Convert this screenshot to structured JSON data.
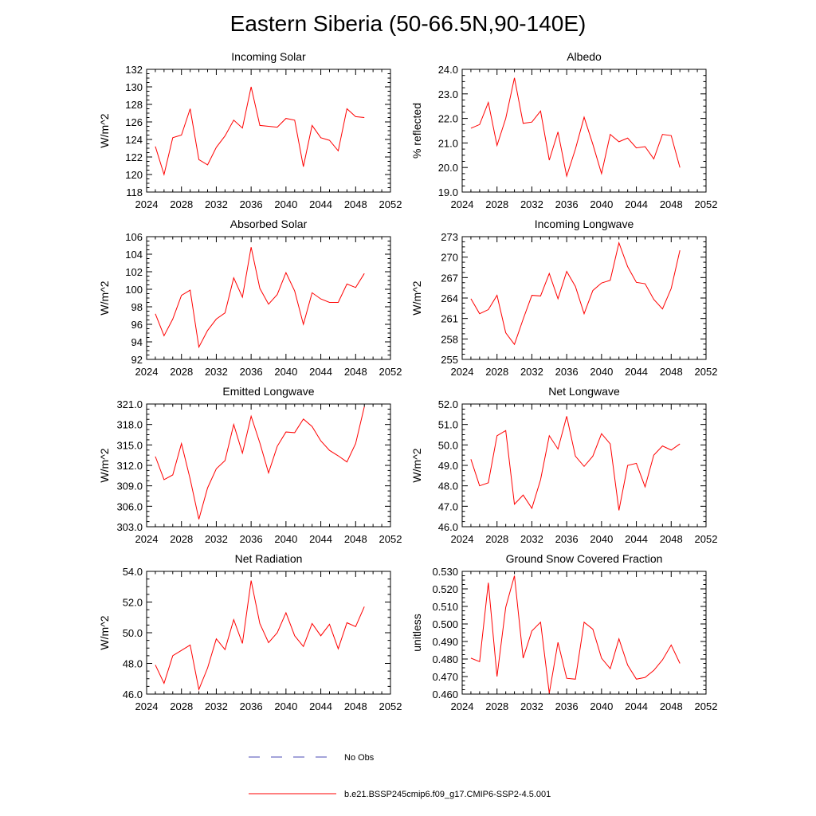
{
  "title": "Eastern Siberia (50-66.5N,90-140E)",
  "colors": {
    "model_line": "#ff0000",
    "obs_line": "#4a4ab4",
    "axis": "#000000"
  },
  "legend": {
    "obs_label": "No Obs",
    "model_label": "b.e21.BSSP245cmip6.f09_g17.CMIP6-SSP2-4.5.001"
  },
  "chart_data": [
    {
      "type": "line",
      "title": "Incoming Solar",
      "ylabel": "W/m^2",
      "xlim": [
        2024,
        2052
      ],
      "ylim": [
        118,
        132
      ],
      "xticks": [
        2024,
        2028,
        2032,
        2036,
        2040,
        2044,
        2048,
        2052
      ],
      "xtick_labels": [
        "2024",
        "2028",
        "2032",
        "2036",
        "2040",
        "2044",
        "2048",
        "2052"
      ],
      "yticks": [
        118,
        120,
        122,
        124,
        126,
        128,
        130,
        132
      ],
      "ytick_labels": [
        "118",
        "120",
        "122",
        "124",
        "126",
        "128",
        "130",
        "132"
      ],
      "x": [
        2025,
        2026,
        2027,
        2028,
        2029,
        2030,
        2031,
        2032,
        2033,
        2034,
        2035,
        2036,
        2037,
        2038,
        2039,
        2040,
        2041,
        2042,
        2043,
        2044,
        2045,
        2046,
        2047,
        2048,
        2049
      ],
      "values": [
        123.2,
        120.0,
        124.2,
        124.5,
        127.5,
        121.7,
        121.1,
        123.1,
        124.4,
        126.2,
        125.3,
        130.0,
        125.6,
        125.5,
        125.4,
        126.4,
        126.2,
        120.9,
        125.6,
        124.2,
        123.9,
        122.7,
        127.5,
        126.6,
        126.5
      ]
    },
    {
      "type": "line",
      "title": "Albedo",
      "ylabel": "% reflected",
      "xlim": [
        2024,
        2052
      ],
      "ylim": [
        19.0,
        24.0
      ],
      "xticks": [
        2024,
        2028,
        2032,
        2036,
        2040,
        2044,
        2048,
        2052
      ],
      "xtick_labels": [
        "2024",
        "2028",
        "2032",
        "2036",
        "2040",
        "2044",
        "2048",
        "2052"
      ],
      "yticks": [
        19.0,
        20.0,
        21.0,
        22.0,
        23.0,
        24.0
      ],
      "ytick_labels": [
        "19.0",
        "20.0",
        "21.0",
        "22.0",
        "23.0",
        "24.0"
      ],
      "x": [
        2025,
        2026,
        2027,
        2028,
        2029,
        2030,
        2031,
        2032,
        2033,
        2034,
        2035,
        2036,
        2037,
        2038,
        2039,
        2040,
        2041,
        2042,
        2043,
        2044,
        2045,
        2046,
        2047,
        2048,
        2049
      ],
      "values": [
        21.6,
        21.75,
        22.65,
        20.9,
        22.0,
        23.65,
        21.8,
        21.85,
        22.3,
        20.3,
        21.45,
        19.65,
        20.75,
        22.05,
        20.95,
        19.75,
        21.35,
        21.05,
        21.2,
        20.8,
        20.85,
        20.35,
        21.35,
        21.3,
        20.0
      ]
    },
    {
      "type": "line",
      "title": "Absorbed Solar",
      "ylabel": "W/m^2",
      "xlim": [
        2024,
        2052
      ],
      "ylim": [
        92,
        106
      ],
      "xticks": [
        2024,
        2028,
        2032,
        2036,
        2040,
        2044,
        2048,
        2052
      ],
      "xtick_labels": [
        "2024",
        "2028",
        "2032",
        "2036",
        "2040",
        "2044",
        "2048",
        "2052"
      ],
      "yticks": [
        92,
        94,
        96,
        98,
        100,
        102,
        104,
        106
      ],
      "ytick_labels": [
        "92",
        "94",
        "96",
        "98",
        "100",
        "102",
        "104",
        "106"
      ],
      "x": [
        2025,
        2026,
        2027,
        2028,
        2029,
        2030,
        2031,
        2032,
        2033,
        2034,
        2035,
        2036,
        2037,
        2038,
        2039,
        2040,
        2041,
        2042,
        2043,
        2044,
        2045,
        2046,
        2047,
        2048,
        2049
      ],
      "values": [
        97.2,
        94.7,
        96.6,
        99.3,
        99.9,
        93.4,
        95.3,
        96.6,
        97.3,
        101.3,
        99.1,
        104.8,
        100.1,
        98.3,
        99.4,
        101.9,
        99.8,
        96.0,
        99.6,
        98.9,
        98.5,
        98.5,
        100.6,
        100.2,
        101.8
      ]
    },
    {
      "type": "line",
      "title": "Incoming Longwave",
      "ylabel": "W/m^2",
      "xlim": [
        2024,
        2052
      ],
      "ylim": [
        255,
        273
      ],
      "xticks": [
        2024,
        2028,
        2032,
        2036,
        2040,
        2044,
        2048,
        2052
      ],
      "xtick_labels": [
        "2024",
        "2028",
        "2032",
        "2036",
        "2040",
        "2044",
        "2048",
        "2052"
      ],
      "yticks": [
        255,
        258,
        261,
        264,
        267,
        270,
        273
      ],
      "ytick_labels": [
        "255",
        "258",
        "261",
        "264",
        "267",
        "270",
        "273"
      ],
      "x": [
        2025,
        2026,
        2027,
        2028,
        2029,
        2030,
        2031,
        2032,
        2033,
        2034,
        2035,
        2036,
        2037,
        2038,
        2039,
        2040,
        2041,
        2042,
        2043,
        2044,
        2045,
        2046,
        2047,
        2048,
        2049
      ],
      "values": [
        263.9,
        261.7,
        262.3,
        264.4,
        258.9,
        257.2,
        260.9,
        264.4,
        264.3,
        267.6,
        263.9,
        267.9,
        265.7,
        261.7,
        265.1,
        266.2,
        266.6,
        272.1,
        268.6,
        266.3,
        266.1,
        263.8,
        262.4,
        265.4,
        271.0
      ]
    },
    {
      "type": "line",
      "title": "Emitted Longwave",
      "ylabel": "W/m^2",
      "xlim": [
        2024,
        2052
      ],
      "ylim": [
        303.0,
        321.0
      ],
      "xticks": [
        2024,
        2028,
        2032,
        2036,
        2040,
        2044,
        2048,
        2052
      ],
      "xtick_labels": [
        "2024",
        "2028",
        "2032",
        "2036",
        "2040",
        "2044",
        "2048",
        "2052"
      ],
      "yticks": [
        303.0,
        306.0,
        309.0,
        312.0,
        315.0,
        318.0,
        321.0
      ],
      "ytick_labels": [
        "303.0",
        "306.0",
        "309.0",
        "312.0",
        "315.0",
        "318.0",
        "321.0"
      ],
      "x": [
        2025,
        2026,
        2027,
        2028,
        2029,
        2030,
        2031,
        2032,
        2033,
        2034,
        2035,
        2036,
        2037,
        2038,
        2039,
        2040,
        2041,
        2042,
        2043,
        2044,
        2045,
        2046,
        2047,
        2048,
        2049
      ],
      "values": [
        313.3,
        309.9,
        310.6,
        315.2,
        310.0,
        304.1,
        308.7,
        311.5,
        312.7,
        318.0,
        313.8,
        319.2,
        315.3,
        310.9,
        314.8,
        316.9,
        316.8,
        318.8,
        317.7,
        315.6,
        314.2,
        313.4,
        312.5,
        315.2,
        320.6
      ]
    },
    {
      "type": "line",
      "title": "Net Longwave",
      "ylabel": "W/m^2",
      "xlim": [
        2024,
        2052
      ],
      "ylim": [
        46.0,
        52.0
      ],
      "xticks": [
        2024,
        2028,
        2032,
        2036,
        2040,
        2044,
        2048,
        2052
      ],
      "xtick_labels": [
        "2024",
        "2028",
        "2032",
        "2036",
        "2040",
        "2044",
        "2048",
        "2052"
      ],
      "yticks": [
        46.0,
        47.0,
        48.0,
        49.0,
        50.0,
        51.0,
        52.0
      ],
      "ytick_labels": [
        "46.0",
        "47.0",
        "48.0",
        "49.0",
        "50.0",
        "51.0",
        "52.0"
      ],
      "x": [
        2025,
        2026,
        2027,
        2028,
        2029,
        2030,
        2031,
        2032,
        2033,
        2034,
        2035,
        2036,
        2037,
        2038,
        2039,
        2040,
        2041,
        2042,
        2043,
        2044,
        2045,
        2046,
        2047,
        2048,
        2049
      ],
      "values": [
        49.3,
        48.0,
        48.15,
        50.45,
        50.7,
        47.1,
        47.55,
        46.9,
        48.3,
        50.45,
        49.8,
        51.4,
        49.45,
        48.95,
        49.45,
        50.55,
        50.05,
        46.8,
        49.0,
        49.1,
        47.95,
        49.5,
        49.95,
        49.75,
        50.05
      ]
    },
    {
      "type": "line",
      "title": "Net Radiation",
      "ylabel": "W/m^2",
      "xlim": [
        2024,
        2052
      ],
      "ylim": [
        46.0,
        54.0
      ],
      "xticks": [
        2024,
        2028,
        2032,
        2036,
        2040,
        2044,
        2048,
        2052
      ],
      "xtick_labels": [
        "2024",
        "2028",
        "2032",
        "2036",
        "2040",
        "2044",
        "2048",
        "2052"
      ],
      "yticks": [
        46.0,
        48.0,
        50.0,
        52.0,
        54.0
      ],
      "ytick_labels": [
        "46.0",
        "48.0",
        "50.0",
        "52.0",
        "54.0"
      ],
      "x": [
        2025,
        2026,
        2027,
        2028,
        2029,
        2030,
        2031,
        2032,
        2033,
        2034,
        2035,
        2036,
        2037,
        2038,
        2039,
        2040,
        2041,
        2042,
        2043,
        2044,
        2045,
        2046,
        2047,
        2048,
        2049
      ],
      "values": [
        47.9,
        46.7,
        48.5,
        48.85,
        49.2,
        46.3,
        47.7,
        49.6,
        48.9,
        50.85,
        49.3,
        53.4,
        50.6,
        49.35,
        50.0,
        51.3,
        49.8,
        49.1,
        50.6,
        49.8,
        50.55,
        48.95,
        50.65,
        50.4,
        51.7
      ]
    },
    {
      "type": "line",
      "title": "Ground Snow Covered Fraction",
      "ylabel": "unitless",
      "xlim": [
        2024,
        2052
      ],
      "ylim": [
        0.46,
        0.53
      ],
      "xticks": [
        2024,
        2028,
        2032,
        2036,
        2040,
        2044,
        2048,
        2052
      ],
      "xtick_labels": [
        "2024",
        "2028",
        "2032",
        "2036",
        "2040",
        "2044",
        "2048",
        "2052"
      ],
      "yticks": [
        0.46,
        0.47,
        0.48,
        0.49,
        0.5,
        0.51,
        0.52,
        0.53
      ],
      "ytick_labels": [
        "0.460",
        "0.470",
        "0.480",
        "0.490",
        "0.500",
        "0.510",
        "0.520",
        "0.530"
      ],
      "x": [
        2025,
        2026,
        2027,
        2028,
        2029,
        2030,
        2031,
        2032,
        2033,
        2034,
        2035,
        2036,
        2037,
        2038,
        2039,
        2040,
        2041,
        2042,
        2043,
        2044,
        2045,
        2046,
        2047,
        2048,
        2049
      ],
      "values": [
        0.4805,
        0.4785,
        0.5235,
        0.47,
        0.5095,
        0.5275,
        0.4805,
        0.496,
        0.501,
        0.4605,
        0.4895,
        0.469,
        0.4685,
        0.501,
        0.497,
        0.4805,
        0.4745,
        0.4915,
        0.4765,
        0.4685,
        0.4695,
        0.4735,
        0.4795,
        0.488,
        0.4775
      ]
    }
  ]
}
